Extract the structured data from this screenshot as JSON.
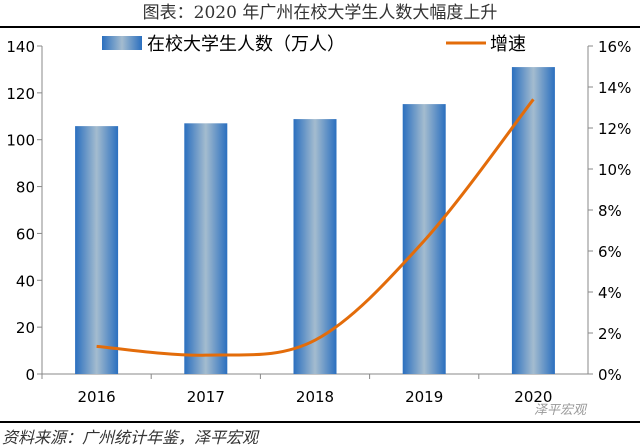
{
  "chart_data": {
    "type": "bar",
    "title": "图表：2020 年广州在校大学生人数大幅度上升",
    "categories": [
      "2016",
      "2017",
      "2018",
      "2019",
      "2020"
    ],
    "series": [
      {
        "name": "在校大学生人数（万人）",
        "type": "bar",
        "axis": "left",
        "values": [
          105.8,
          107.0,
          108.8,
          115.2,
          131.0
        ]
      },
      {
        "name": "增速",
        "type": "line",
        "axis": "right",
        "values": [
          1.35,
          0.92,
          1.65,
          6.5,
          13.4
        ]
      }
    ],
    "ylim_left": [
      0,
      140
    ],
    "yticks_left": [
      "0",
      "20",
      "40",
      "60",
      "80",
      "100",
      "120",
      "140"
    ],
    "ylim_right": [
      0,
      16
    ],
    "yticks_right": [
      "0%",
      "2%",
      "4%",
      "6%",
      "8%",
      "10%",
      "12%",
      "14%",
      "16%"
    ],
    "legend": "top",
    "grid": false
  },
  "source": "资料来源：广州统计年鉴，泽平宏观",
  "watermark": "泽平宏观",
  "colors": {
    "bar": "#2f74c0",
    "bar_light": "#9fb9cf",
    "line": "#e36c0a"
  }
}
